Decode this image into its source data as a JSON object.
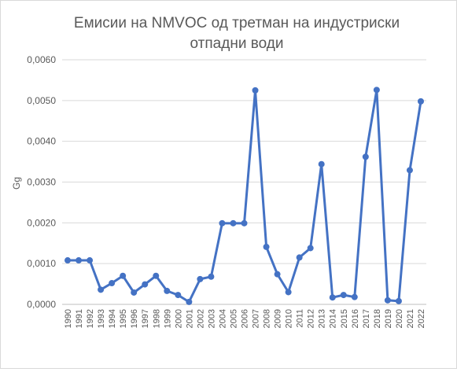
{
  "chart_data": {
    "type": "line",
    "title_lines": [
      "Емисии на NMVOC од третман на индустриски",
      "отпадни води"
    ],
    "ylabel": "Gg",
    "xlabel": "",
    "ylim": [
      0,
      0.006
    ],
    "y_ticks": [
      "0,0000",
      "0,0010",
      "0,0020",
      "0,0030",
      "0,0040",
      "0,0050",
      "0,0060"
    ],
    "grid": true,
    "legend": "none",
    "categories": [
      "1990",
      "1991",
      "1992",
      "1993",
      "1994",
      "1995",
      "1996",
      "1997",
      "1998",
      "1999",
      "2000",
      "2001",
      "2002",
      "2003",
      "2004",
      "2005",
      "2006",
      "2007",
      "2008",
      "2009",
      "2010",
      "2011",
      "2012",
      "2013",
      "2014",
      "2015",
      "2016",
      "2017",
      "2018",
      "2019",
      "2020",
      "2021",
      "2022"
    ],
    "series": [
      {
        "color": "#4472c4",
        "values": [
          0.00108,
          0.00108,
          0.00108,
          0.00036,
          0.00052,
          0.0007,
          0.00029,
          0.00049,
          0.0007,
          0.00033,
          0.00023,
          6e-05,
          0.00062,
          0.00068,
          0.00199,
          0.00199,
          0.00199,
          0.00525,
          0.00141,
          0.00074,
          0.0003,
          0.00115,
          0.00138,
          0.00344,
          0.00017,
          0.00023,
          0.00018,
          0.00362,
          0.00526,
          0.0001,
          8e-05,
          0.00329,
          0.00498
        ]
      }
    ]
  }
}
